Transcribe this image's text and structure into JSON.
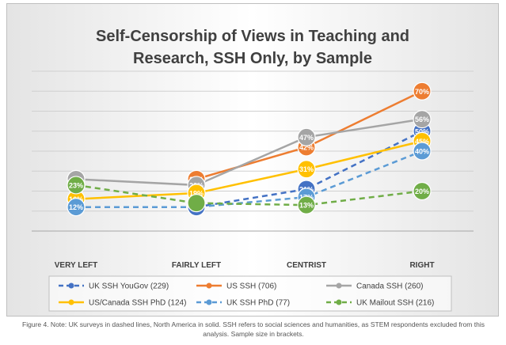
{
  "caption": "Figure 4. Note: UK surveys in dashed lines, North America in solid. SSH refers to social sciences and humanities, as STEM respondents excluded from this analysis. Sample size in brackets.",
  "chart_data": {
    "type": "line",
    "title_lines": [
      "Self-Censorship of Views in Teaching and",
      "Research, SSH Only, by Sample"
    ],
    "categories": [
      "VERY LEFT",
      "FAIRLY LEFT",
      "CENTRIST",
      "RIGHT"
    ],
    "ylim": [
      0,
      80
    ],
    "grid": true,
    "legend_position": "bottom",
    "series": [
      {
        "name": "UK SSH YouGov (229)",
        "values": [
          null,
          12,
          21,
          50
        ],
        "labels": [
          "",
          "12%",
          "21%",
          "50%"
        ],
        "color": "#4472c4",
        "dashed": true,
        "show_marker": [
          false,
          true,
          true,
          true
        ]
      },
      {
        "name": "US SSH (706)",
        "values": [
          null,
          26,
          42,
          70
        ],
        "labels": [
          "",
          "26%",
          "42%",
          "70%"
        ],
        "color": "#ed7d31",
        "dashed": false,
        "show_marker": [
          false,
          true,
          true,
          true
        ]
      },
      {
        "name": "Canada SSH (260)",
        "values": [
          26,
          23,
          47,
          56
        ],
        "labels": [
          "",
          "23%",
          "47%",
          "56%"
        ],
        "color": "#a5a5a5",
        "dashed": false,
        "show_marker": [
          true,
          true,
          true,
          true
        ]
      },
      {
        "name": "US/Canada SSH PhD (124)",
        "values": [
          16,
          19,
          31,
          45
        ],
        "labels": [
          "16%",
          "19%",
          "31%",
          "45%"
        ],
        "color": "#ffc000",
        "dashed": false,
        "show_marker": [
          true,
          true,
          true,
          true
        ]
      },
      {
        "name": "UK  SSH PhD (77)",
        "values": [
          12,
          12,
          17,
          40
        ],
        "labels": [
          "12%",
          "",
          "17%",
          "40%"
        ],
        "color": "#5b9bd5",
        "dashed": true,
        "show_marker": [
          true,
          false,
          true,
          true
        ]
      },
      {
        "name": "UK Mailout SSH (216)",
        "values": [
          23,
          14,
          13,
          20
        ],
        "labels": [
          "23%",
          "",
          "13%",
          "20%"
        ],
        "color": "#70ad47",
        "dashed": true,
        "show_marker": [
          true,
          true,
          true,
          true
        ]
      }
    ]
  }
}
